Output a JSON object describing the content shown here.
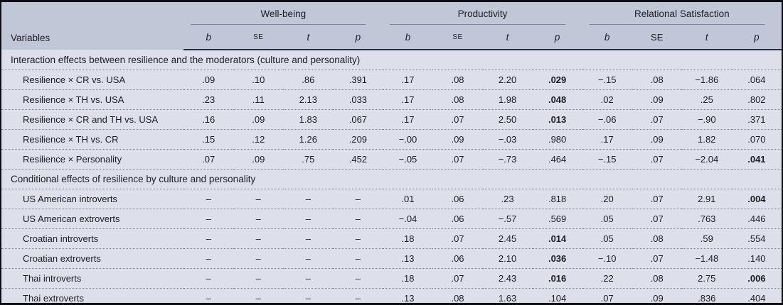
{
  "table": {
    "variables_header": "Variables",
    "col_groups": [
      {
        "label": "Well-being",
        "subcols": [
          "b",
          "SE",
          "t",
          "p"
        ]
      },
      {
        "label": "Productivity",
        "subcols": [
          "b",
          "SE",
          "t",
          "p"
        ]
      },
      {
        "label": "Relational Satisfaction",
        "subcols": [
          "b",
          "SE",
          "t",
          "p"
        ]
      }
    ],
    "sections": [
      {
        "title": "Interaction effects between resilience and the moderators (culture and personality)",
        "rows": [
          {
            "label": "Resilience × CR vs. USA",
            "values": [
              ".09",
              ".10",
              ".86",
              ".391",
              ".17",
              ".08",
              "2.20",
              ".029",
              "−.15",
              ".08",
              "−1.86",
              ".064"
            ],
            "bold": [
              7
            ]
          },
          {
            "label": "Resilience × TH vs. USA",
            "values": [
              ".23",
              ".11",
              "2.13",
              ".033",
              ".17",
              ".08",
              "1.98",
              ".048",
              ".02",
              ".09",
              ".25",
              ".802"
            ],
            "bold": [
              7
            ]
          },
          {
            "label": "Resilience × CR and TH vs. USA",
            "values": [
              ".16",
              ".09",
              "1.83",
              ".067",
              ".17",
              ".07",
              "2.50",
              ".013",
              "−.06",
              ".07",
              "−.90",
              ".371"
            ],
            "bold": [
              7
            ]
          },
          {
            "label": "Resilience × TH vs. CR",
            "values": [
              ".15",
              ".12",
              "1.26",
              ".209",
              "−.00",
              ".09",
              "−.03",
              ".980",
              ".17",
              ".09",
              "1.82",
              ".070"
            ],
            "bold": []
          },
          {
            "label": "Resilience × Personality",
            "values": [
              ".07",
              ".09",
              ".75",
              ".452",
              "−.05",
              ".07",
              "−.73",
              ".464",
              "−.15",
              ".07",
              "−2.04",
              ".041"
            ],
            "bold": [
              11
            ]
          }
        ]
      },
      {
        "title": "Conditional effects of resilience by culture and personality",
        "rows": [
          {
            "label": "US American introverts",
            "values": [
              "–",
              "–",
              "–",
              "–",
              ".01",
              ".06",
              ".23",
              ".818",
              ".20",
              ".07",
              "2.91",
              ".004"
            ],
            "bold": [
              11
            ]
          },
          {
            "label": "US American extroverts",
            "values": [
              "–",
              "–",
              "–",
              "–",
              "−.04",
              ".06",
              "−.57",
              ".569",
              ".05",
              ".07",
              ".763",
              ".446"
            ],
            "bold": []
          },
          {
            "label": "Croatian introverts",
            "values": [
              "–",
              "–",
              "–",
              "–",
              ".18",
              ".07",
              "2.45",
              ".014",
              ".05",
              ".08",
              ".59",
              ".554"
            ],
            "bold": [
              7
            ]
          },
          {
            "label": "Croatian extroverts",
            "values": [
              "–",
              "–",
              "–",
              "–",
              ".13",
              ".06",
              "2.10",
              ".036",
              "−.10",
              ".07",
              "−1.48",
              ".140"
            ],
            "bold": [
              7
            ]
          },
          {
            "label": "Thai introverts",
            "values": [
              "–",
              "–",
              "–",
              "–",
              ".18",
              ".07",
              "2.43",
              ".016",
              ".22",
              ".08",
              "2.75",
              ".006"
            ],
            "bold": [
              7,
              11
            ]
          },
          {
            "label": "Thai extroverts",
            "values": [
              "–",
              "–",
              "–",
              "–",
              ".13",
              ".08",
              "1.63",
              ".104",
              ".07",
              ".09",
              ".836",
              ".404"
            ],
            "bold": []
          }
        ]
      }
    ]
  },
  "colors": {
    "header_bg": "#c2c7d8",
    "body_bg": "#dde0eb",
    "frame_border": "#0c0c14",
    "head_divider": "#2a2c3f",
    "dotted_rule": "#7f8699",
    "group_rule": "#7e8499"
  }
}
